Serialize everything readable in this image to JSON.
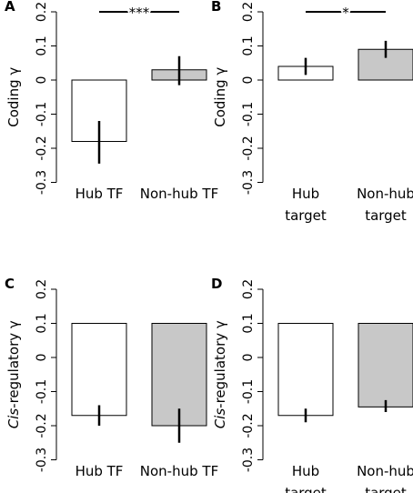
{
  "chart_data": [
    {
      "type": "bar",
      "panel": "A",
      "ylabel": [
        {
          "text": "Coding γ"
        }
      ],
      "categories": [
        [
          "Hub TF"
        ],
        [
          "Non-hub TF"
        ]
      ],
      "values": [
        -0.18,
        0.03
      ],
      "err_low": [
        -0.245,
        -0.015
      ],
      "err_high": [
        -0.12,
        0.07
      ],
      "colors": [
        "#ffffff",
        "#c8c8c8"
      ],
      "bar_base": 0,
      "significance": "***",
      "ylim": [
        -0.3,
        0.2
      ],
      "yticks": [
        -0.3,
        -0.2,
        -0.1,
        0.0,
        0.1,
        0.2
      ]
    },
    {
      "type": "bar",
      "panel": "B",
      "ylabel": [
        {
          "text": "Coding γ"
        }
      ],
      "categories": [
        [
          "Hub",
          "target"
        ],
        [
          "Non-hub",
          "target"
        ]
      ],
      "values": [
        0.04,
        0.09
      ],
      "err_low": [
        0.015,
        0.065
      ],
      "err_high": [
        0.065,
        0.115
      ],
      "colors": [
        "#ffffff",
        "#c8c8c8"
      ],
      "bar_base": 0,
      "significance": "*",
      "ylim": [
        -0.3,
        0.2
      ],
      "yticks": [
        -0.3,
        -0.2,
        -0.1,
        0.0,
        0.1,
        0.2
      ]
    },
    {
      "type": "bar",
      "panel": "C",
      "ylabel": [
        {
          "text": "Cis",
          "italic": true
        },
        {
          "text": "-regulatory γ"
        }
      ],
      "categories": [
        [
          "Hub TF"
        ],
        [
          "Non-hub TF"
        ]
      ],
      "values": [
        -0.17,
        -0.2
      ],
      "err_low": [
        -0.2,
        -0.25
      ],
      "err_high": [
        -0.14,
        -0.15
      ],
      "colors": [
        "#ffffff",
        "#c8c8c8"
      ],
      "bar_base": 0.1,
      "ylim": [
        -0.3,
        0.2
      ],
      "yticks": [
        -0.3,
        -0.2,
        -0.1,
        0.0,
        0.1,
        0.2
      ]
    },
    {
      "type": "bar",
      "panel": "D",
      "ylabel": [
        {
          "text": "Cis",
          "italic": true
        },
        {
          "text": "-regulatory γ"
        }
      ],
      "categories": [
        [
          "Hub",
          "target"
        ],
        [
          "Non-hub",
          "target"
        ]
      ],
      "values": [
        -0.17,
        -0.145
      ],
      "err_low": [
        -0.19,
        -0.16
      ],
      "err_high": [
        -0.15,
        -0.125
      ],
      "colors": [
        "#ffffff",
        "#c8c8c8"
      ],
      "bar_base": 0.1,
      "ylim": [
        -0.3,
        0.2
      ],
      "yticks": [
        -0.3,
        -0.2,
        -0.1,
        0.0,
        0.1,
        0.2
      ]
    }
  ]
}
